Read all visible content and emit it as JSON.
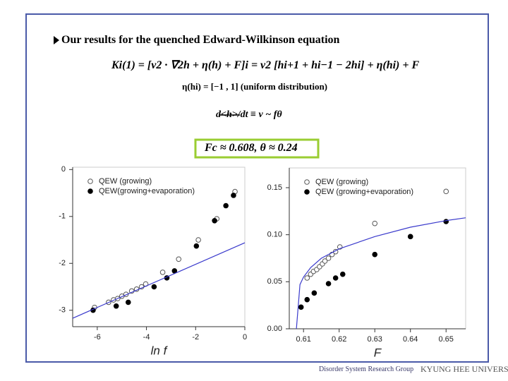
{
  "slide": {
    "title": "Our results for the quenched Edward-Wilkinson equation",
    "equation_1": "Ki(1) = [ν2 · ∇2h + η(h) + F]i = ν2 [hi+1 + hi−1 − 2hi] + η(hi) + F",
    "equation_2": "η(hi) = [−1 , 1]   (uniform distribution)",
    "equation_3": "d<h>/dt ≡ v ~ fθ",
    "result": "Fc ≈ 0.608,   θ ≈ 0.24",
    "logo_group": "Disorder System Research Group",
    "logo_university": "KYUNG HEE UNIVERSITY"
  },
  "chart_data": [
    {
      "type": "scatter",
      "xlabel": "ln f",
      "xlim": [
        -7,
        0
      ],
      "ylim": [
        -3.35,
        0.05
      ],
      "xticks": [
        -6,
        -4,
        -2,
        0
      ],
      "yticks": [
        0,
        -1,
        -2,
        -3
      ],
      "legend": "top-left",
      "series": [
        {
          "name": "QEW (growing)",
          "marker": "open",
          "color": "#555555",
          "x": [
            -6.11,
            -5.54,
            -5.34,
            -5.17,
            -5.0,
            -4.83,
            -4.6,
            -4.4,
            -4.2,
            -4.03,
            -3.34,
            -2.69,
            -1.89,
            -1.14,
            -0.4
          ],
          "values": [
            -2.94,
            -2.83,
            -2.78,
            -2.75,
            -2.7,
            -2.66,
            -2.59,
            -2.55,
            -2.5,
            -2.44,
            -2.19,
            -1.91,
            -1.5,
            -1.05,
            -0.47
          ]
        },
        {
          "name": "QEW(growing+evaporation)",
          "marker": "filled",
          "color": "#000000",
          "x": [
            -6.17,
            -5.23,
            -4.74,
            -3.69,
            -3.17,
            -2.86,
            -1.97,
            -1.23,
            -0.77,
            -0.46
          ],
          "values": [
            -3.0,
            -2.91,
            -2.83,
            -2.5,
            -2.31,
            -2.16,
            -1.63,
            -1.09,
            -0.77,
            -0.55
          ]
        },
        {
          "marker": "line",
          "color": "#3a3acc",
          "x": [
            -7,
            0
          ],
          "values": [
            -3.17,
            -1.56
          ]
        }
      ]
    },
    {
      "type": "scatter",
      "xlabel": "F",
      "xlim": [
        0.606,
        0.6555
      ],
      "ylim": [
        0,
        0.171
      ],
      "xticks": [
        0.61,
        0.62,
        0.63,
        0.64,
        0.65
      ],
      "yticks": [
        {
          "value": 0,
          "label": "0.00"
        },
        {
          "value": 0.05,
          "label": "0.05"
        },
        {
          "value": 0.1,
          "label": "0.10"
        },
        {
          "value": 0.15,
          "label": "0.15"
        }
      ],
      "legend": "top-left",
      "series": [
        {
          "name": "QEW (growing)",
          "marker": "open",
          "color": "#555555",
          "x": [
            0.611,
            0.612,
            0.6128,
            0.6137,
            0.6145,
            0.6153,
            0.616,
            0.617,
            0.618,
            0.619,
            0.6202,
            0.63,
            0.65
          ],
          "values": [
            0.054,
            0.058,
            0.061,
            0.063,
            0.066,
            0.069,
            0.072,
            0.075,
            0.079,
            0.082,
            0.087,
            0.112,
            0.146
          ]
        },
        {
          "name": "QEW (growing+evaporation)",
          "marker": "filled",
          "color": "#000000",
          "x": [
            0.6093,
            0.611,
            0.613,
            0.617,
            0.619,
            0.621,
            0.63,
            0.64,
            0.65
          ],
          "values": [
            0.023,
            0.031,
            0.038,
            0.048,
            0.054,
            0.058,
            0.079,
            0.098,
            0.114
          ]
        },
        {
          "marker": "line",
          "color": "#3a3acc",
          "x": [
            0.608,
            0.609,
            0.61,
            0.612,
            0.615,
            0.62,
            0.63,
            0.64,
            0.65,
            0.6555
          ],
          "values": [
            0,
            0.047,
            0.055,
            0.065,
            0.075,
            0.085,
            0.098,
            0.108,
            0.115,
            0.118
          ]
        }
      ]
    }
  ]
}
